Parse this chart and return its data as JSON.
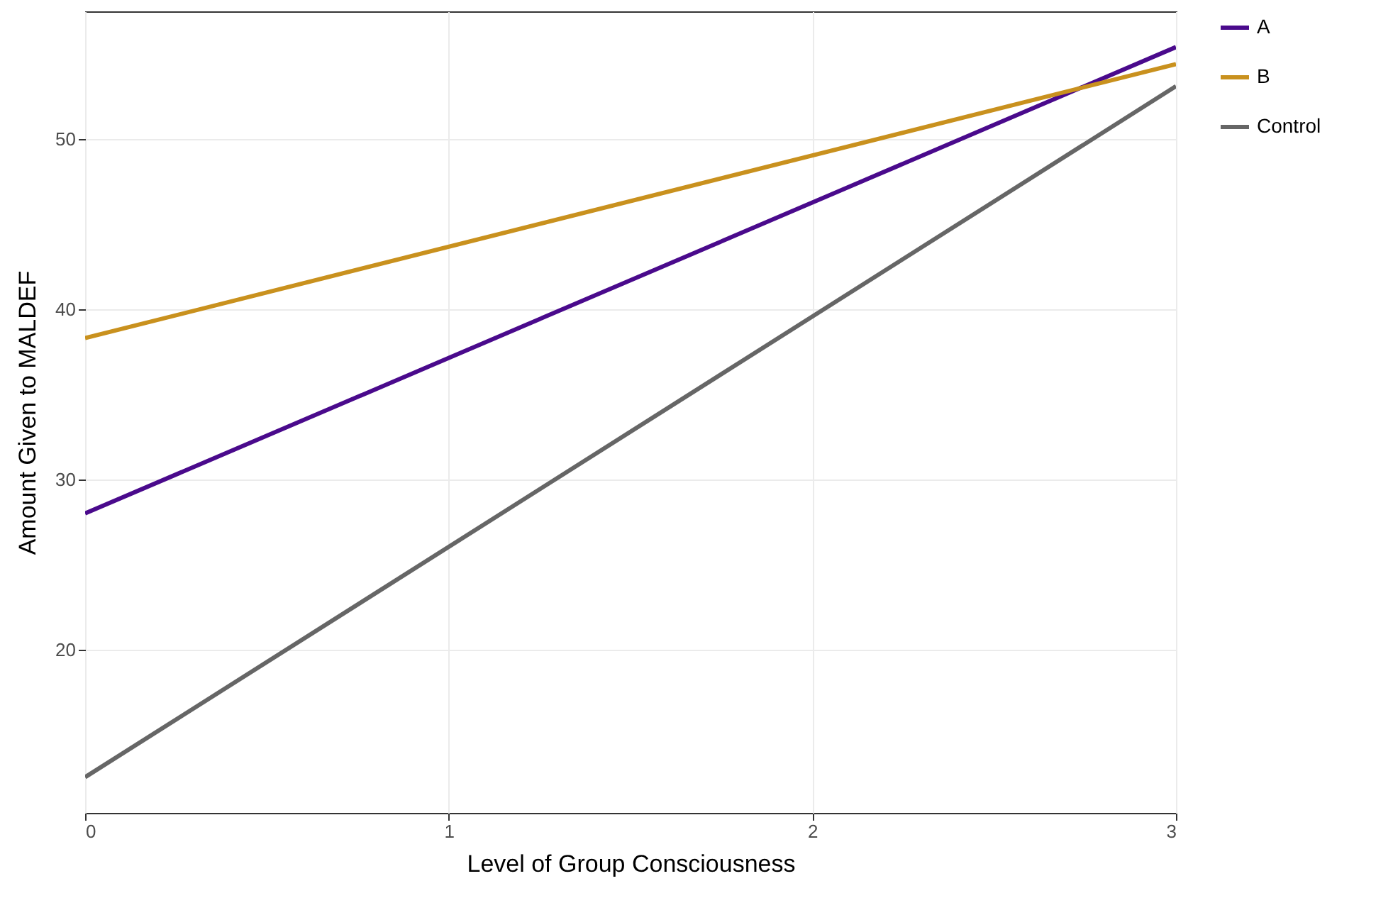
{
  "chart_data": {
    "type": "line",
    "xlabel": "Level of Group Consciousness",
    "ylabel": "Amount Given to MALDEF",
    "x": [
      0,
      3
    ],
    "series": [
      {
        "name": "A",
        "color": "#4a0a8c",
        "values": [
          28.0,
          55.4
        ]
      },
      {
        "name": "B",
        "color": "#c9911e",
        "values": [
          38.3,
          54.4
        ]
      },
      {
        "name": "Control",
        "color": "#666666",
        "values": [
          12.5,
          53.1
        ]
      }
    ],
    "xlim": [
      0,
      3
    ],
    "xticks": [
      0,
      1,
      2,
      3
    ],
    "ylim": [
      10.4,
      57.5
    ],
    "yticks": [
      20,
      30,
      40,
      50
    ],
    "grid": true,
    "legend": "right",
    "marker": "none",
    "line_style": "solid"
  }
}
